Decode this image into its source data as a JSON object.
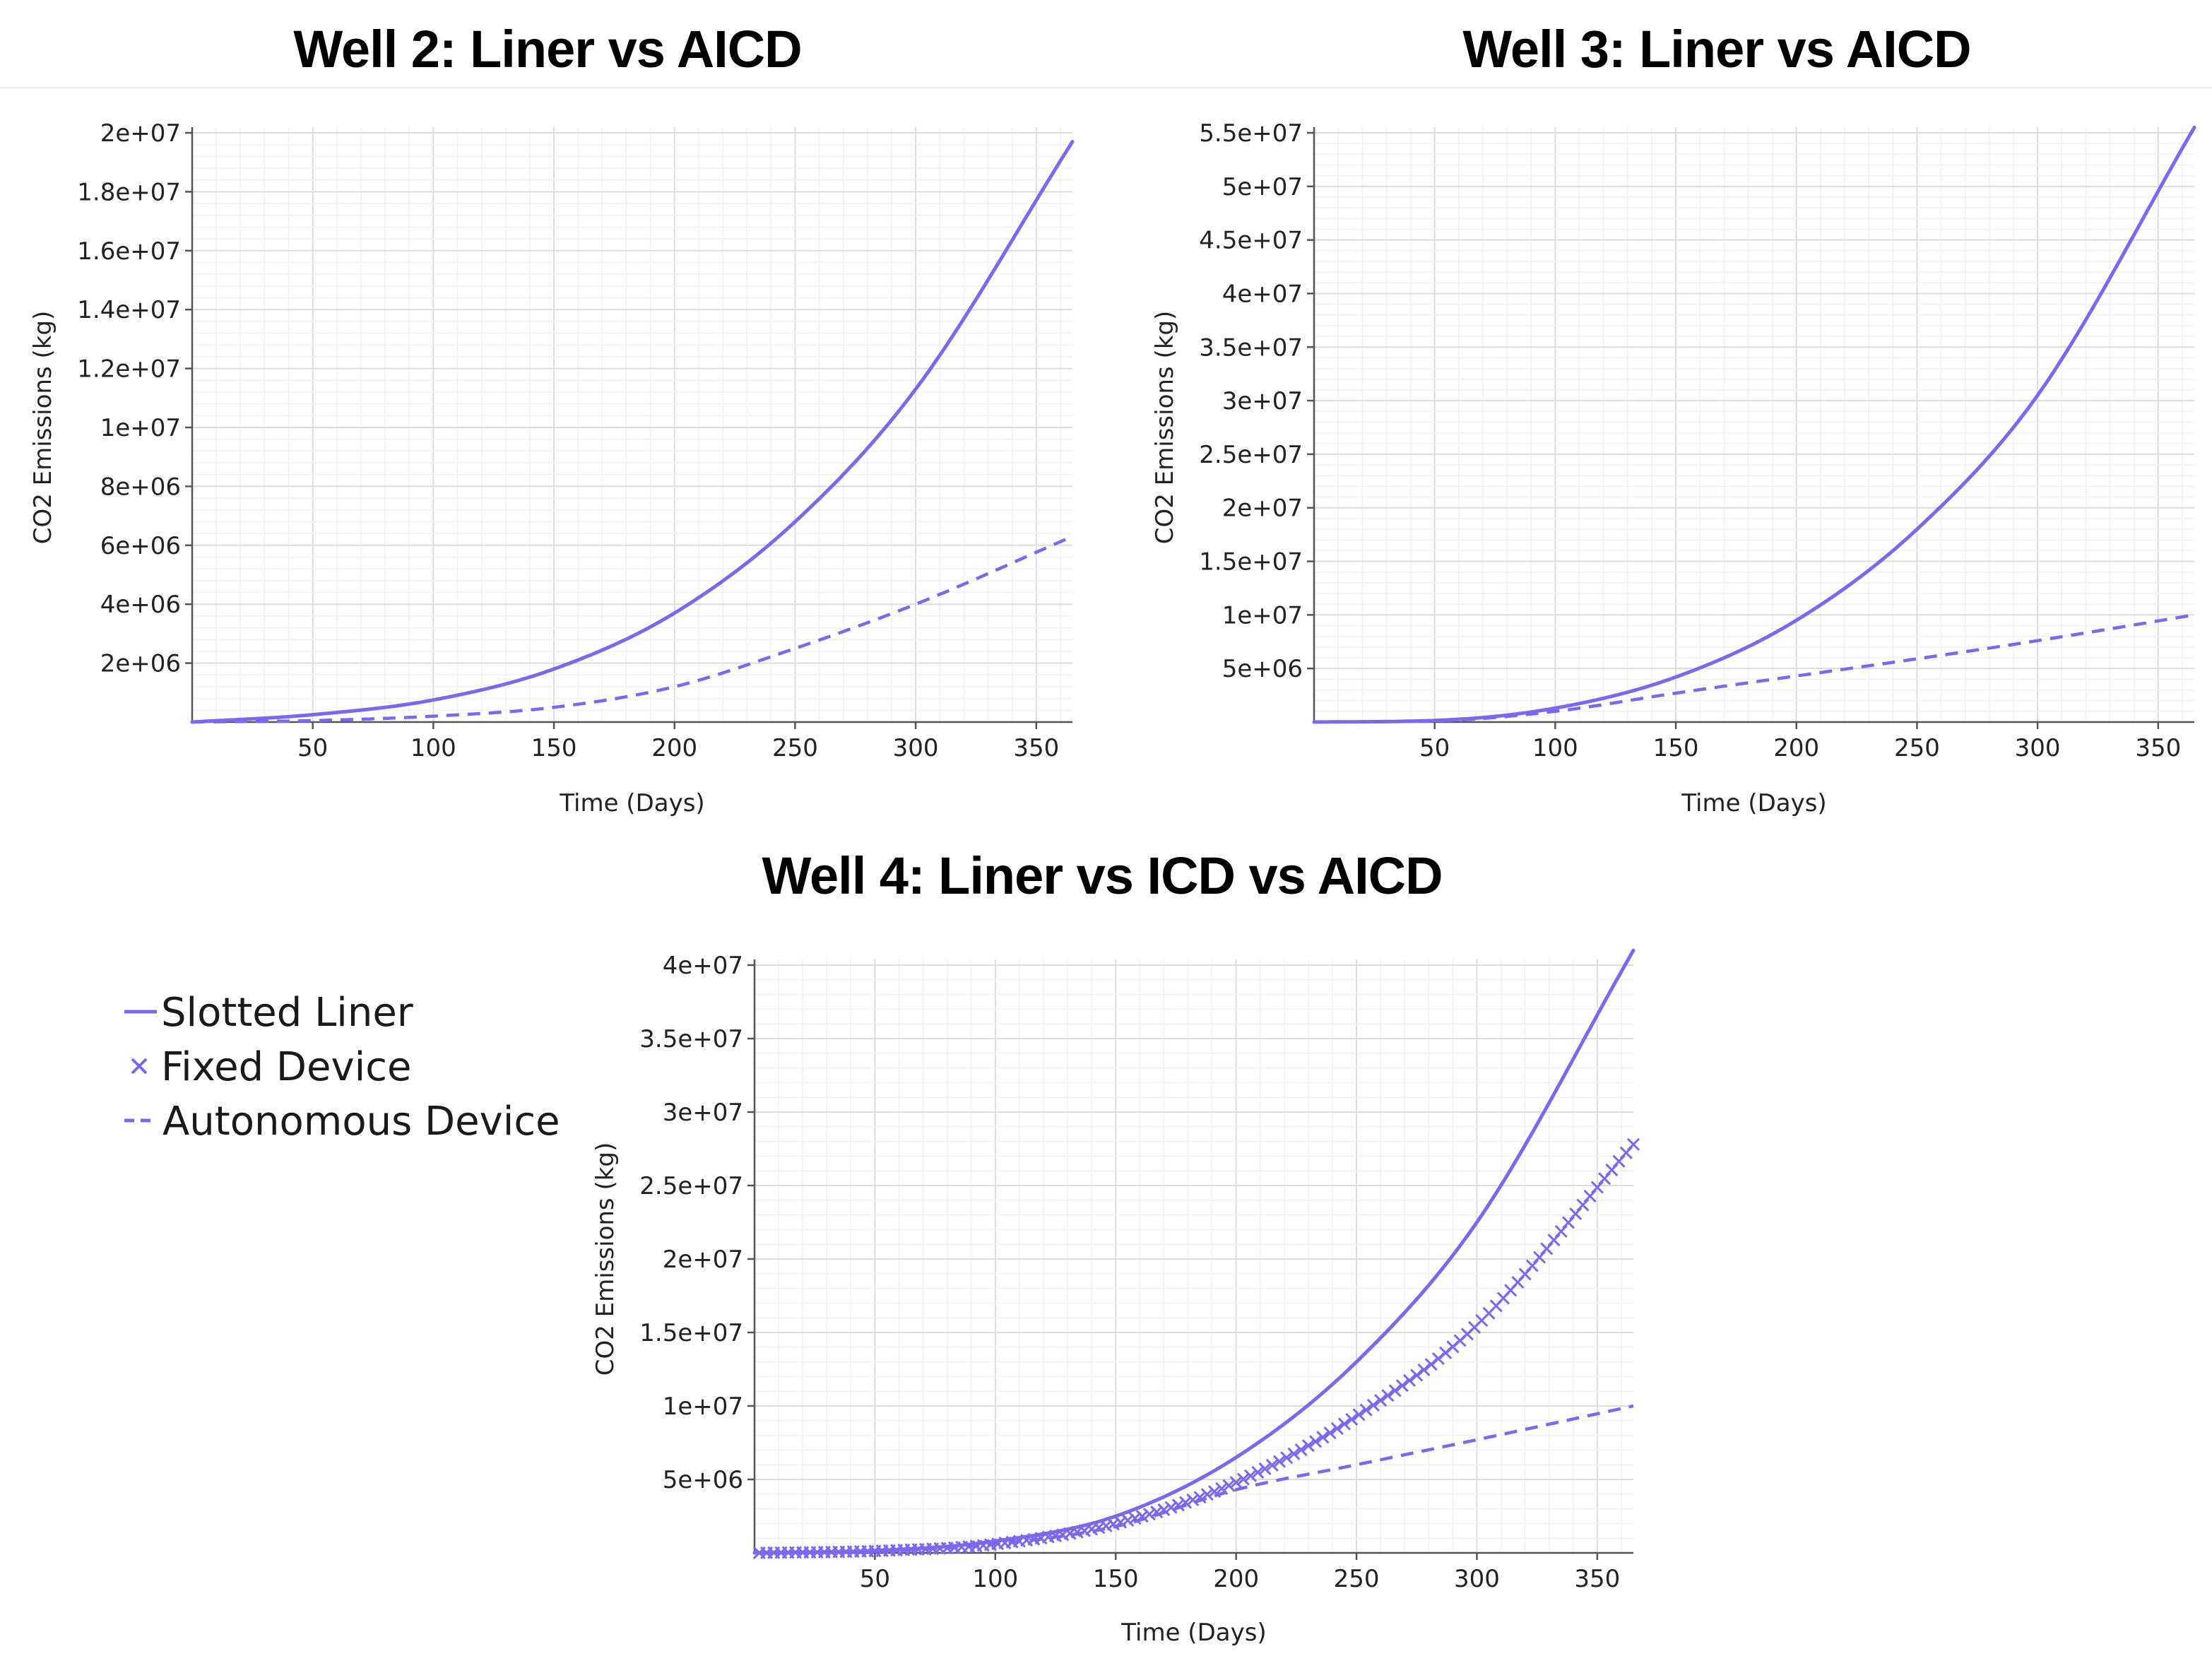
{
  "colors": {
    "series": "#7b68ee"
  },
  "legend": {
    "items": [
      {
        "label": "Slotted Liner",
        "style": "solid"
      },
      {
        "label": "Fixed Device",
        "style": "x-marker"
      },
      {
        "label": "Autonomous Device",
        "style": "dashed"
      }
    ]
  },
  "chart_data": [
    {
      "id": "well2",
      "type": "line",
      "title": "Well 2: Liner vs AICD",
      "xlabel": "Time (Days)",
      "ylabel": "CO2 Emissions (kg)",
      "xlim": [
        0,
        365
      ],
      "ylim": [
        0,
        20000000
      ],
      "xticks": [
        50,
        100,
        150,
        200,
        250,
        300,
        350
      ],
      "xtick_labels": [
        "50",
        "100",
        "150",
        "200",
        "250",
        "300",
        "350"
      ],
      "yticks": [
        2000000,
        4000000,
        6000000,
        8000000,
        10000000,
        12000000,
        14000000,
        16000000,
        18000000,
        20000000
      ],
      "ytick_labels": [
        "2e+06",
        "4e+06",
        "6e+06",
        "8e+06",
        "1e+07",
        "1.2e+07",
        "1.4e+07",
        "1.6e+07",
        "1.8e+07",
        "2e+07"
      ],
      "series": [
        {
          "name": "Slotted Liner",
          "style": "solid",
          "x": [
            0,
            50,
            100,
            150,
            200,
            250,
            300,
            365
          ],
          "y": [
            0,
            250000,
            750000,
            1800000,
            3700000,
            6800000,
            11300000,
            19700000
          ]
        },
        {
          "name": "Autonomous Device",
          "style": "dashed",
          "x": [
            0,
            50,
            100,
            150,
            200,
            250,
            300,
            365
          ],
          "y": [
            0,
            50000,
            200000,
            500000,
            1200000,
            2500000,
            4000000,
            6300000
          ]
        }
      ]
    },
    {
      "id": "well3",
      "type": "line",
      "title": "Well 3: Liner vs AICD",
      "xlabel": "Time (Days)",
      "ylabel": "CO2 Emissions (kg)",
      "xlim": [
        0,
        365
      ],
      "ylim": [
        0,
        55000000
      ],
      "xticks": [
        50,
        100,
        150,
        200,
        250,
        300,
        350
      ],
      "xtick_labels": [
        "50",
        "100",
        "150",
        "200",
        "250",
        "300",
        "350"
      ],
      "yticks": [
        5000000,
        10000000,
        15000000,
        20000000,
        25000000,
        30000000,
        35000000,
        40000000,
        45000000,
        50000000,
        55000000
      ],
      "ytick_labels": [
        "5e+06",
        "1e+07",
        "1.5e+07",
        "2e+07",
        "2.5e+07",
        "3e+07",
        "3.5e+07",
        "4e+07",
        "4.5e+07",
        "5e+07",
        "5.5e+07"
      ],
      "series": [
        {
          "name": "Slotted Liner",
          "style": "solid",
          "x": [
            0,
            50,
            100,
            150,
            200,
            250,
            300,
            365
          ],
          "y": [
            0,
            150000,
            1300000,
            4200000,
            9500000,
            18000000,
            30500000,
            55500000
          ]
        },
        {
          "name": "Autonomous Device",
          "style": "dashed",
          "x": [
            0,
            50,
            100,
            150,
            200,
            250,
            300,
            365
          ],
          "y": [
            0,
            100000,
            1000000,
            2700000,
            4300000,
            5900000,
            7600000,
            10000000
          ]
        }
      ]
    },
    {
      "id": "well4",
      "type": "line",
      "title": "Well 4: Liner vs ICD vs AICD",
      "xlabel": "Time (Days)",
      "ylabel": "CO2 Emissions (kg)",
      "xlim": [
        0,
        365
      ],
      "ylim": [
        0,
        40000000
      ],
      "xticks": [
        50,
        100,
        150,
        200,
        250,
        300,
        350
      ],
      "xtick_labels": [
        "50",
        "100",
        "150",
        "200",
        "250",
        "300",
        "350"
      ],
      "yticks": [
        5000000,
        10000000,
        15000000,
        20000000,
        25000000,
        30000000,
        35000000,
        40000000
      ],
      "ytick_labels": [
        "5e+06",
        "1e+07",
        "1.5e+07",
        "2e+07",
        "2.5e+07",
        "3e+07",
        "3.5e+07",
        "4e+07"
      ],
      "series": [
        {
          "name": "Slotted Liner",
          "style": "solid",
          "x": [
            0,
            50,
            100,
            150,
            200,
            250,
            300,
            365
          ],
          "y": [
            0,
            150000,
            800000,
            2500000,
            6500000,
            13000000,
            22500000,
            41000000
          ]
        },
        {
          "name": "Fixed Device",
          "style": "x-marker",
          "x": [
            0,
            50,
            100,
            150,
            200,
            250,
            300,
            365
          ],
          "y": [
            0,
            130000,
            600000,
            2000000,
            4800000,
            9300000,
            15500000,
            27800000
          ]
        },
        {
          "name": "Autonomous Device",
          "style": "dashed",
          "x": [
            0,
            50,
            100,
            150,
            200,
            250,
            300,
            365
          ],
          "y": [
            0,
            130000,
            600000,
            1800000,
            4300000,
            6000000,
            7700000,
            10000000
          ]
        }
      ]
    }
  ]
}
